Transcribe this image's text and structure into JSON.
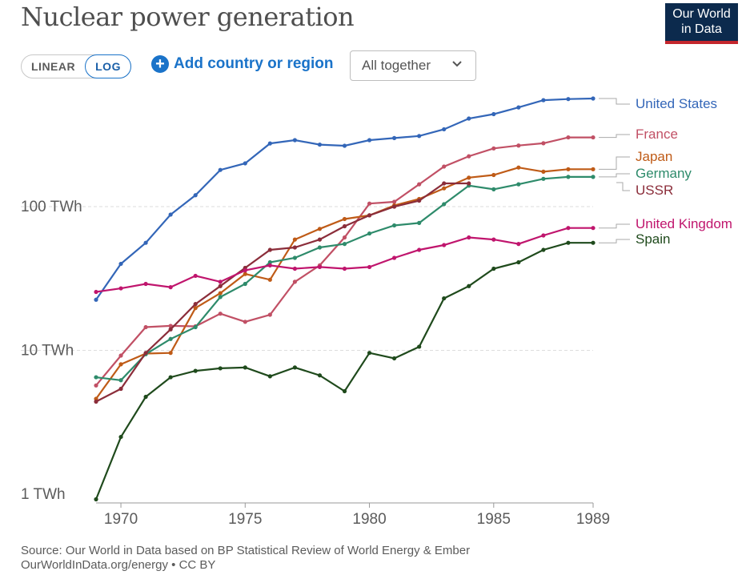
{
  "title": "Nuclear power generation",
  "logo": {
    "line1": "Our World",
    "line2": "in Data"
  },
  "controls": {
    "linear_label": "LINEAR",
    "log_label": "LOG",
    "add_label": "Add country or region",
    "select_value": "All together"
  },
  "footer": {
    "source": "Source: Our World in Data based on BP Statistical Review of World Energy & Ember",
    "url": "OurWorldInData.org/energy • CC BY"
  },
  "chart_data": {
    "type": "line",
    "y_scale": "log",
    "ylim": [
      1,
      650
    ],
    "xlim": [
      1969.5,
      1989
    ],
    "y_ticks": [
      {
        "value": 1,
        "label": "1 TWh"
      },
      {
        "value": 10,
        "label": "10 TWh"
      },
      {
        "value": 100,
        "label": "100 TWh"
      }
    ],
    "x_ticks": [
      {
        "value": 1970,
        "label": "1970"
      },
      {
        "value": 1975,
        "label": "1975"
      },
      {
        "value": 1980,
        "label": "1980"
      },
      {
        "value": 1985,
        "label": "1985"
      },
      {
        "value": 1989,
        "label": "1989"
      }
    ],
    "grid": "horizontal",
    "legend": "right, end-of-line labels",
    "series": [
      {
        "name": "United States",
        "color": "#3366b8",
        "x": [
          1969.5,
          1970.5,
          1971.5,
          1972.5,
          1973.5,
          1974.5,
          1975.5,
          1976.5,
          1977.5,
          1978.5,
          1979.5,
          1980.5,
          1981.5,
          1982.5,
          1983.5,
          1984.5,
          1985.5,
          1986.5,
          1987.5,
          1988.5,
          1989.5
        ],
        "y": [
          22.5,
          40,
          56,
          88,
          120,
          180,
          200,
          275,
          290,
          270,
          265,
          290,
          300,
          310,
          345,
          410,
          440,
          490,
          550,
          560,
          565
        ]
      },
      {
        "name": "France",
        "color": "#c15065",
        "x": [
          1969.5,
          1970.5,
          1971.5,
          1972.5,
          1973.5,
          1974.5,
          1975.5,
          1976.5,
          1977.5,
          1978.5,
          1979.5,
          1980.5,
          1981.5,
          1982.5,
          1983.5,
          1984.5,
          1985.5,
          1986.5,
          1987.5,
          1988.5,
          1989.5
        ],
        "y": [
          5.7,
          9.2,
          14.5,
          14.8,
          14.7,
          18,
          15.8,
          17.7,
          30,
          39,
          61,
          105,
          108,
          143,
          190,
          224,
          254,
          266,
          276,
          303,
          303
        ]
      },
      {
        "name": "Japan",
        "color": "#bf5b17",
        "x": [
          1969.5,
          1970.5,
          1971.5,
          1972.5,
          1973.5,
          1974.5,
          1975.5,
          1976.5,
          1977.5,
          1978.5,
          1979.5,
          1980.5,
          1981.5,
          1982.5,
          1983.5,
          1984.5,
          1985.5,
          1986.5,
          1987.5,
          1988.5,
          1989.5
        ],
        "y": [
          4.6,
          8,
          9.5,
          9.6,
          19.7,
          25,
          34,
          31,
          59,
          70,
          82,
          87,
          102,
          113,
          134,
          159,
          166,
          187,
          175,
          182,
          182
        ]
      },
      {
        "name": "Germany",
        "color": "#2e8b6b",
        "x": [
          1969.5,
          1970.5,
          1971.5,
          1972.5,
          1973.5,
          1974.5,
          1975.5,
          1976.5,
          1977.5,
          1978.5,
          1979.5,
          1980.5,
          1981.5,
          1982.5,
          1983.5,
          1984.5,
          1985.5,
          1986.5,
          1987.5,
          1988.5,
          1989.5
        ],
        "y": [
          6.5,
          6.2,
          9.4,
          12,
          14.5,
          23.5,
          29,
          41,
          44,
          52,
          55,
          65,
          74,
          77,
          104,
          140,
          132,
          143,
          156,
          161,
          161
        ]
      },
      {
        "name": "USSR",
        "color": "#8b2d3a",
        "x": [
          1969.5,
          1970.5,
          1971.5,
          1972.5,
          1973.5,
          1974.5,
          1975.5,
          1976.5,
          1977.5,
          1978.5,
          1979.5,
          1980.5,
          1981.5,
          1982.5,
          1983.5,
          1984.5
        ],
        "y": [
          4.4,
          5.4,
          9.6,
          14,
          21,
          28,
          37.5,
          50,
          52,
          59,
          73,
          87,
          100,
          110,
          145,
          145
        ]
      },
      {
        "name": "United Kingdom",
        "color": "#c0156d",
        "x": [
          1969.5,
          1970.5,
          1971.5,
          1972.5,
          1973.5,
          1974.5,
          1975.5,
          1976.5,
          1977.5,
          1978.5,
          1979.5,
          1980.5,
          1981.5,
          1982.5,
          1983.5,
          1984.5,
          1985.5,
          1986.5,
          1987.5,
          1988.5,
          1989.5
        ],
        "y": [
          25.5,
          27,
          29,
          27.5,
          33,
          30,
          36,
          39,
          37,
          38,
          37,
          38,
          44,
          50,
          54,
          61,
          59,
          55,
          63,
          71,
          71
        ]
      },
      {
        "name": "Spain",
        "color": "#1f4a1c",
        "x": [
          1969.5,
          1970.5,
          1971.5,
          1972.5,
          1973.5,
          1974.5,
          1975.5,
          1976.5,
          1977.5,
          1978.5,
          1979.5,
          1980.5,
          1981.5,
          1982.5,
          1983.5,
          1984.5,
          1985.5,
          1986.5,
          1987.5,
          1988.5,
          1989.5
        ],
        "y": [
          0.92,
          2.5,
          4.75,
          6.5,
          7.2,
          7.5,
          7.6,
          6.6,
          7.6,
          6.7,
          5.2,
          9.6,
          8.8,
          10.6,
          23,
          28,
          37,
          41,
          50,
          56,
          56
        ]
      }
    ]
  }
}
